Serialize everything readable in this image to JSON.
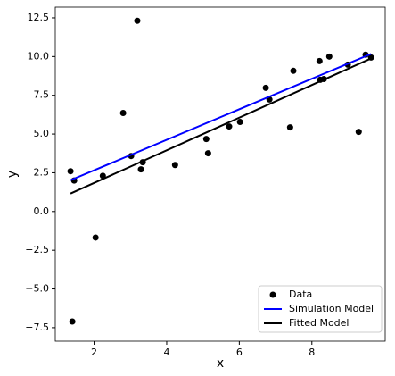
{
  "chart_data": {
    "type": "scatter",
    "xlabel": "x",
    "ylabel": "y",
    "xlim": [
      0.93,
      10.02
    ],
    "ylim": [
      -8.37,
      13.19
    ],
    "xticks": [
      2,
      4,
      6,
      8
    ],
    "yticks": [
      {
        "value": -7.5,
        "label": "−7.5"
      },
      {
        "value": -5,
        "label": "−5.0"
      },
      {
        "value": -2.5,
        "label": "−2.5"
      },
      {
        "value": 0,
        "label": "0.0"
      },
      2.5,
      {
        "value": 5,
        "label": "5.0"
      },
      7.5,
      {
        "value": 10,
        "label": "10.0"
      },
      12.5
    ],
    "legend": "lower right",
    "series": [
      {
        "name": "Data",
        "color": "#000000",
        "mode": "markers",
        "x": [
          1.35,
          1.4,
          1.45,
          2.04,
          2.24,
          2.8,
          3.02,
          3.19,
          3.29,
          3.34,
          4.23,
          5.09,
          5.14,
          5.72,
          6.02,
          6.73,
          6.83,
          7.4,
          7.49,
          8.21,
          8.23,
          8.33,
          8.48,
          8.99,
          9.29,
          9.48,
          9.63
        ],
        "values": [
          2.6,
          -7.1,
          2.0,
          -1.68,
          2.3,
          6.36,
          3.58,
          12.31,
          2.72,
          3.18,
          3.0,
          4.68,
          3.76,
          5.49,
          5.78,
          7.98,
          7.23,
          5.43,
          9.08,
          9.71,
          8.5,
          8.55,
          10.0,
          9.48,
          5.14,
          10.12,
          9.94
        ]
      },
      {
        "name": "Simulation Model",
        "color": "#0000ff",
        "mode": "lines",
        "x": [
          1.35,
          9.63
        ],
        "values": [
          2.02,
          10.17
        ]
      },
      {
        "name": "Fitted Model",
        "color": "#000000",
        "mode": "lines",
        "x": [
          1.35,
          9.63
        ],
        "values": [
          1.16,
          9.88
        ]
      }
    ]
  }
}
